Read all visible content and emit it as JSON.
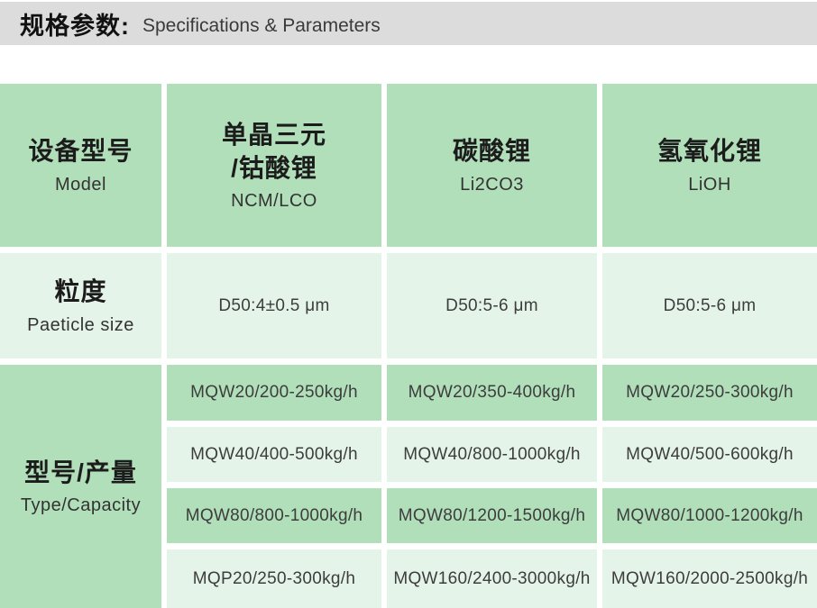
{
  "colors": {
    "header_bar": "#dcdcdc",
    "cell_green_dark": "#b1dfba",
    "cell_green_light": "#e5f4e9"
  },
  "header": {
    "title_zh": "规格参数:",
    "title_en": "Specifications & Parameters"
  },
  "table": {
    "row_headers": {
      "model": {
        "zh": "设备型号",
        "en": "Model"
      },
      "particle": {
        "zh": "粒度",
        "en": "Paeticle size"
      },
      "capacity": {
        "zh": "型号/产量",
        "en": "Type/Capacity"
      }
    },
    "columns": [
      {
        "zh_line1": "单晶三元",
        "zh_line2": "/钴酸锂",
        "en": "NCM/LCO"
      },
      {
        "zh_line1": "碳酸锂",
        "zh_line2": "",
        "en": "Li2CO3"
      },
      {
        "zh_line1": "氢氧化锂",
        "zh_line2": "",
        "en": "LiOH"
      }
    ],
    "particle_sizes": [
      "D50:4±0.5 μm",
      "D50:5-6 μm",
      "D50:5-6 μm"
    ],
    "capacity_rows": [
      [
        "MQW20/200-250kg/h",
        "MQW20/350-400kg/h",
        "MQW20/250-300kg/h"
      ],
      [
        "MQW40/400-500kg/h",
        "MQW40/800-1000kg/h",
        "MQW40/500-600kg/h"
      ],
      [
        "MQW80/800-1000kg/h",
        "MQW80/1200-1500kg/h",
        "MQW80/1000-1200kg/h"
      ],
      [
        "MQP20/250-300kg/h",
        "MQW160/2400-3000kg/h",
        "MQW160/2000-2500kg/h"
      ]
    ]
  }
}
